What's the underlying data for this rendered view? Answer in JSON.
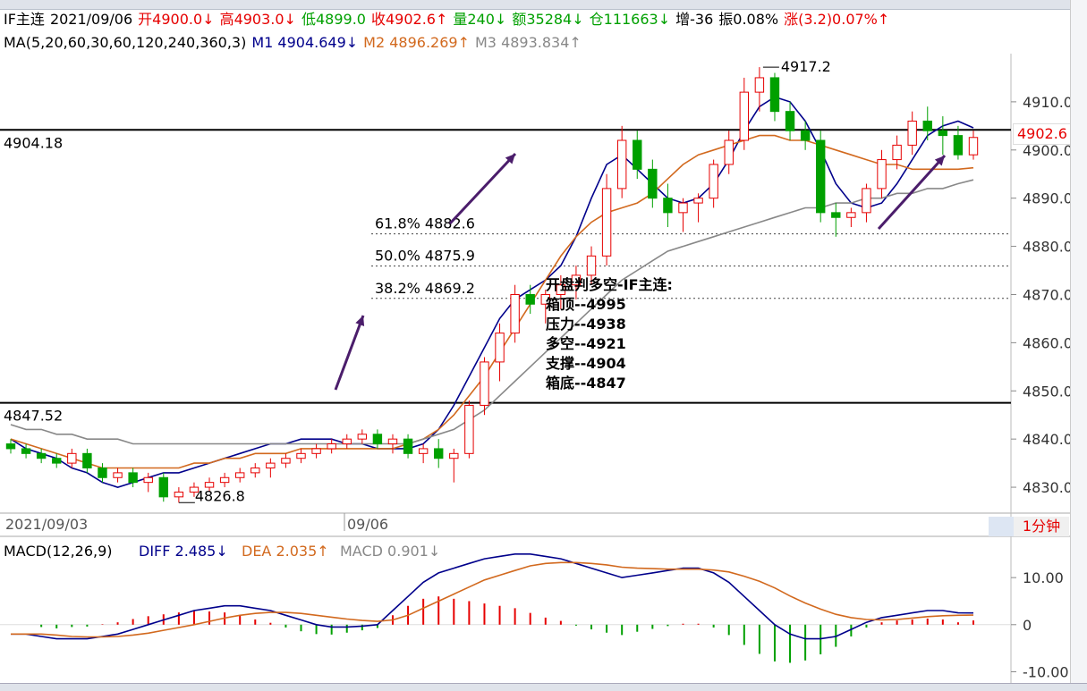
{
  "header": {
    "symbol": "IF主连",
    "date": "2021/09/06",
    "open": "开4900.0↓",
    "high": "高4903.0↓",
    "low": "低4899.0",
    "close": "收4902.6↑",
    "volume": "量240↓",
    "amount": "额35284↓",
    "position": "仓111663↓",
    "increase": "增-36",
    "amplitude": "振0.08%",
    "change": "涨(3.2)0.07%↑"
  },
  "ma_line": {
    "label": "MA(5,20,60,30,60,120,240,360,3)",
    "m1": "M1 4904.649↓",
    "m2": "M2 4896.269↑",
    "m3": "M3 4893.834↑"
  },
  "colors": {
    "up": "#e60000",
    "down": "#00a000",
    "m1": "#00008b",
    "m2": "#d2691e",
    "m3": "#888888"
  },
  "annotations": {
    "level_upper": "4904.18",
    "level_lower": "4847.52",
    "high_label": "4917.2",
    "low_label": "4826.8",
    "fib_618": "61.8% 4882.6",
    "fib_500": "50.0% 4875.9",
    "fib_382": "38.2% 4869.2",
    "date_left": "2021/09/03",
    "date_right": "09/06",
    "last_price": "4902.6",
    "period": "1分钟"
  },
  "note": {
    "title": "开盘判多空-IF主连:",
    "lines": [
      "箱顶--4995",
      "压力--4938",
      "多空--4921",
      "支撑--4904",
      "箱底--4847"
    ]
  },
  "macd_header": {
    "label": "MACD(12,26,9)",
    "diff": "DIFF 2.485↓",
    "dea": "DEA 2.035↑",
    "macd": "MACD 0.901↓"
  },
  "chart_data": [
    {
      "type": "candlestick",
      "title": "IF主连 1分钟",
      "yaxis_ticks": [
        4830,
        4840,
        4850,
        4860,
        4870,
        4880,
        4890,
        4900,
        4910
      ],
      "ylim": [
        4825,
        4920
      ],
      "horizontal_levels": [
        4904.18,
        4847.52
      ],
      "fib_levels": [
        4882.6,
        4875.9,
        4869.2
      ],
      "candles": [
        [
          4839,
          4840,
          4837,
          4838
        ],
        [
          4838,
          4839,
          4836,
          4837
        ],
        [
          4837,
          4838,
          4835,
          4836
        ],
        [
          4836,
          4837,
          4834,
          4835
        ],
        [
          4835,
          4838,
          4834,
          4837
        ],
        [
          4837,
          4838,
          4833,
          4834
        ],
        [
          4834,
          4835,
          4831,
          4832
        ],
        [
          4832,
          4834,
          4831,
          4833
        ],
        [
          4833,
          4834,
          4830,
          4831
        ],
        [
          4831,
          4833,
          4829,
          4832
        ],
        [
          4832,
          4833,
          4827,
          4828
        ],
        [
          4828,
          4830,
          4826.8,
          4829
        ],
        [
          4829,
          4831,
          4828,
          4830
        ],
        [
          4830,
          4832,
          4829,
          4831
        ],
        [
          4831,
          4833,
          4830,
          4832
        ],
        [
          4832,
          4834,
          4831,
          4833
        ],
        [
          4833,
          4835,
          4832,
          4834
        ],
        [
          4834,
          4836,
          4832,
          4835
        ],
        [
          4835,
          4837,
          4834,
          4836
        ],
        [
          4836,
          4838,
          4835,
          4837
        ],
        [
          4837,
          4839,
          4836,
          4838
        ],
        [
          4838,
          4840,
          4837,
          4839
        ],
        [
          4839,
          4841,
          4838,
          4840
        ],
        [
          4840,
          4842,
          4839,
          4841
        ],
        [
          4841,
          4842,
          4838,
          4839
        ],
        [
          4839,
          4841,
          4837,
          4840
        ],
        [
          4840,
          4841,
          4836,
          4837
        ],
        [
          4837,
          4839,
          4835,
          4838
        ],
        [
          4838,
          4840,
          4834,
          4836
        ],
        [
          4836,
          4838,
          4831,
          4837
        ],
        [
          4837,
          4848,
          4836,
          4847
        ],
        [
          4847,
          4857,
          4845,
          4856
        ],
        [
          4856,
          4864,
          4852,
          4862
        ],
        [
          4862,
          4872,
          4860,
          4870
        ],
        [
          4870,
          4872,
          4866,
          4868
        ],
        [
          4868,
          4871,
          4864,
          4870
        ],
        [
          4870,
          4874,
          4867,
          4872
        ],
        [
          4872,
          4876,
          4869,
          4874
        ],
        [
          4874,
          4880,
          4872,
          4878
        ],
        [
          4878,
          4895,
          4876,
          4892
        ],
        [
          4892,
          4905,
          4890,
          4902
        ],
        [
          4902,
          4904,
          4894,
          4896
        ],
        [
          4896,
          4898,
          4888,
          4890
        ],
        [
          4890,
          4893,
          4884,
          4887
        ],
        [
          4887,
          4890,
          4883,
          4889
        ],
        [
          4889,
          4891,
          4885,
          4890
        ],
        [
          4890,
          4898,
          4888,
          4897
        ],
        [
          4897,
          4904,
          4895,
          4902
        ],
        [
          4902,
          4915,
          4900,
          4912
        ],
        [
          4912,
          4917.2,
          4908,
          4915
        ],
        [
          4915,
          4916,
          4906,
          4908
        ],
        [
          4908,
          4910,
          4902,
          4904
        ],
        [
          4904,
          4906,
          4900,
          4902
        ],
        [
          4902,
          4904,
          4885,
          4887
        ],
        [
          4887,
          4889,
          4882,
          4886
        ],
        [
          4886,
          4888,
          4884,
          4887
        ],
        [
          4887,
          4893,
          4885,
          4892
        ],
        [
          4892,
          4900,
          4890,
          4898
        ],
        [
          4898,
          4903,
          4896,
          4901
        ],
        [
          4901,
          4908,
          4899,
          4906
        ],
        [
          4906,
          4909,
          4902,
          4904
        ],
        [
          4904,
          4907,
          4899,
          4903
        ],
        [
          4903,
          4905,
          4898,
          4899
        ],
        [
          4899,
          4904,
          4898,
          4902.6
        ]
      ],
      "series": [
        {
          "name": "M1",
          "values": [
            4840,
            4838,
            4837,
            4836,
            4834,
            4833,
            4831,
            4830,
            4831,
            4832,
            4833,
            4833,
            4834,
            4835,
            4836,
            4837,
            4838,
            4839,
            4839,
            4840,
            4840,
            4840,
            4839,
            4839,
            4838,
            4838,
            4838,
            4839,
            4842,
            4847,
            4853,
            4859,
            4865,
            4869,
            4871,
            4873,
            4876,
            4882,
            4890,
            4897,
            4899,
            4896,
            4893,
            4890,
            4889,
            4890,
            4893,
            4898,
            4904,
            4909,
            4911,
            4910,
            4906,
            4900,
            4893,
            4889,
            4888,
            4889,
            4893,
            4898,
            4903,
            4905,
            4906,
            4904.6
          ]
        },
        {
          "name": "M2",
          "values": [
            4840,
            4839,
            4838,
            4837,
            4836,
            4835,
            4834,
            4834,
            4834,
            4834,
            4834,
            4834,
            4835,
            4835,
            4836,
            4836,
            4837,
            4837,
            4837,
            4838,
            4838,
            4838,
            4838,
            4838,
            4838,
            4838,
            4839,
            4840,
            4842,
            4845,
            4849,
            4853,
            4858,
            4863,
            4868,
            4873,
            4878,
            4882,
            4885,
            4887,
            4888,
            4889,
            4891,
            4894,
            4897,
            4899,
            4900,
            4901,
            4902,
            4903,
            4903,
            4902,
            4902,
            4901,
            4900,
            4899,
            4898,
            4897,
            4897,
            4896,
            4896,
            4896,
            4896,
            4896.3
          ]
        },
        {
          "name": "M3",
          "values": [
            4843,
            4842,
            4842,
            4841,
            4841,
            4840,
            4840,
            4840,
            4839,
            4839,
            4839,
            4839,
            4839,
            4839,
            4839,
            4839,
            4839,
            4839,
            4839,
            4839,
            4839,
            4839,
            4839,
            4839,
            4839,
            4839,
            4839,
            4840,
            4841,
            4842,
            4844,
            4846,
            4849,
            4852,
            4855,
            4858,
            4861,
            4864,
            4867,
            4870,
            4873,
            4875,
            4877,
            4879,
            4880,
            4881,
            4882,
            4883,
            4884,
            4885,
            4886,
            4887,
            4888,
            4888,
            4889,
            4889,
            4890,
            4890,
            4891,
            4891,
            4892,
            4892,
            4893,
            4893.8
          ]
        }
      ]
    },
    {
      "type": "macd",
      "title": "MACD(12,26,9)",
      "yaxis_ticks": [
        -10,
        0,
        10
      ],
      "ylim": [
        -12,
        18
      ],
      "series": [
        {
          "name": "DIFF",
          "values": [
            -2,
            -2,
            -2.5,
            -3,
            -3,
            -3,
            -2.5,
            -2,
            -1,
            0,
            1,
            2,
            3,
            3.5,
            4,
            4,
            3.5,
            3,
            2,
            1,
            0,
            -0.5,
            -0.5,
            -0.3,
            0,
            3,
            6,
            9,
            11,
            12,
            13,
            14,
            14.5,
            15,
            15,
            14.5,
            14,
            13,
            12,
            11,
            10,
            10.5,
            11,
            11.5,
            12,
            12,
            11,
            9,
            6,
            3,
            0,
            -2,
            -3,
            -3,
            -2.5,
            -1,
            0.5,
            1.5,
            2,
            2.5,
            3,
            3,
            2.5,
            2.485
          ]
        },
        {
          "name": "DEA",
          "values": [
            -2,
            -2,
            -2,
            -2.2,
            -2.5,
            -2.6,
            -2.6,
            -2.5,
            -2.2,
            -1.8,
            -1.2,
            -0.6,
            0,
            0.7,
            1.4,
            2,
            2.4,
            2.6,
            2.6,
            2.4,
            2,
            1.6,
            1.2,
            0.9,
            0.7,
            1,
            2,
            3.5,
            5,
            6.5,
            8,
            9.5,
            10.5,
            11.5,
            12.5,
            13,
            13.2,
            13.2,
            13,
            12.7,
            12.2,
            12,
            11.9,
            11.8,
            11.8,
            11.8,
            11.6,
            11.2,
            10.3,
            9.2,
            7.8,
            6.1,
            4.6,
            3.3,
            2.2,
            1.5,
            1.1,
            1,
            1.1,
            1.4,
            1.7,
            1.9,
            2,
            2.035
          ]
        },
        {
          "name": "MACD",
          "values": [
            0,
            0,
            -0.5,
            -0.8,
            -0.5,
            -0.4,
            0.1,
            0.5,
            1.2,
            1.8,
            2.2,
            2.6,
            3,
            2.8,
            2.6,
            2,
            1.1,
            0.4,
            -0.6,
            -1.4,
            -2,
            -2.1,
            -1.7,
            -1.2,
            -0.7,
            2,
            4,
            5.5,
            6,
            5.5,
            5,
            4.5,
            4,
            3.5,
            2.5,
            1.5,
            0.8,
            -0.2,
            -1,
            -1.7,
            -2.2,
            -1.5,
            -0.9,
            -0.3,
            0.2,
            0.2,
            -0.6,
            -2.2,
            -4.3,
            -6.2,
            -7.8,
            -8.1,
            -7.6,
            -6.3,
            -4.7,
            -2.5,
            -0.6,
            0.5,
            0.9,
            1.1,
            1.3,
            1.1,
            0.5,
            0.901
          ]
        }
      ]
    }
  ]
}
